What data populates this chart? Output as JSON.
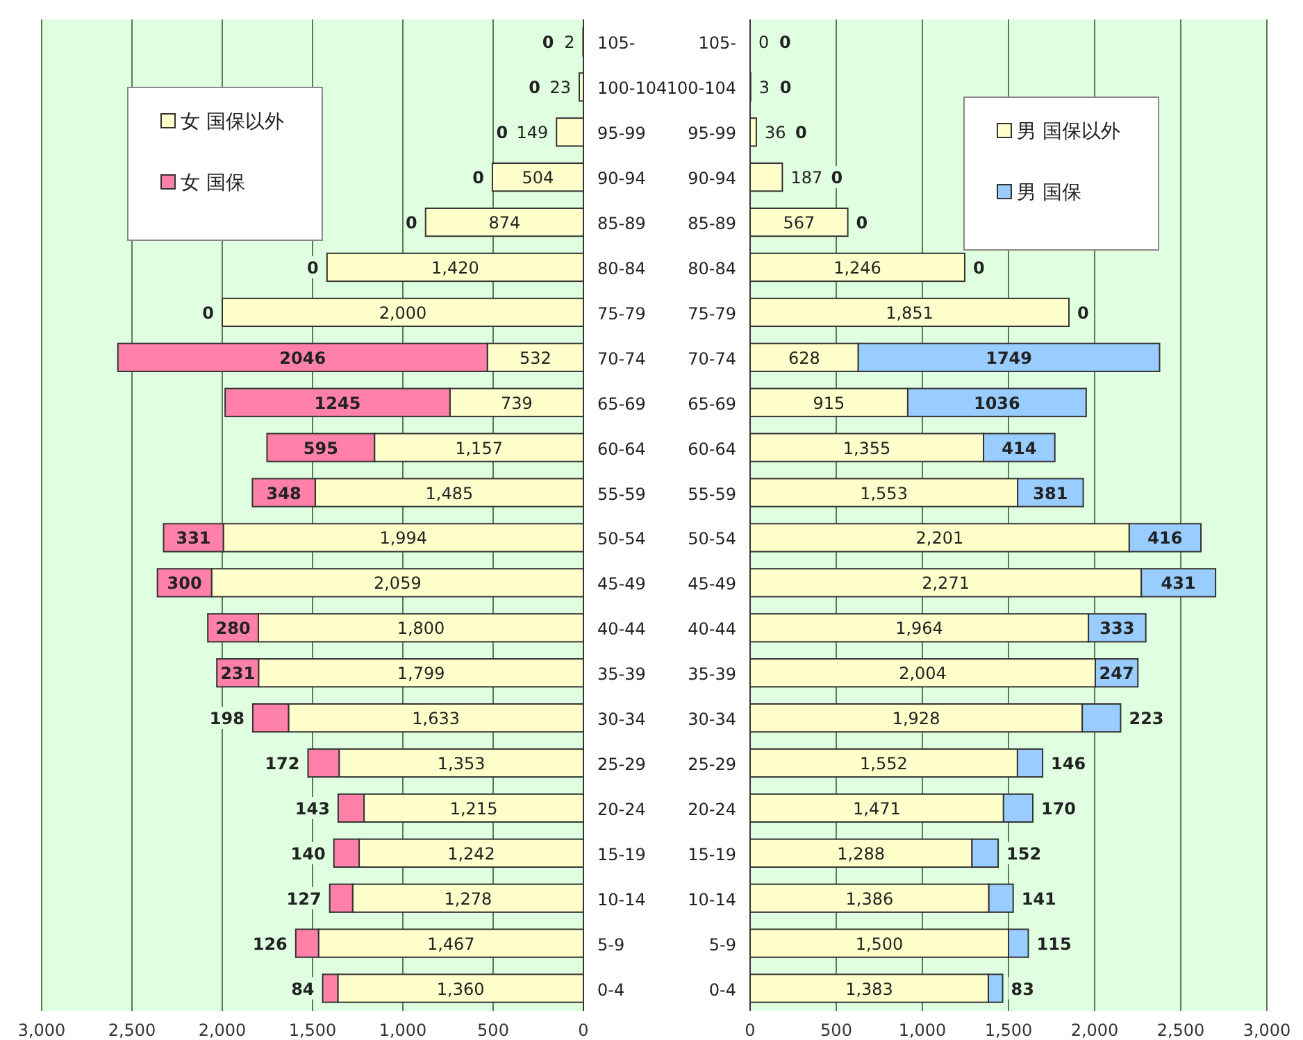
{
  "chart_data": [
    {
      "type": "bar",
      "orientation": "horizontal",
      "stacked": true,
      "grid": "x",
      "legend": "top left",
      "data_labels": false,
      "categories": [
        "105-",
        "100-104",
        "95-99",
        "90-94",
        "85-89",
        "80-84",
        "75-79",
        "70-74",
        "65-69",
        "60-64",
        "55-59",
        "50-54",
        "45-49",
        "40-44",
        "35-39",
        "30-34",
        "25-29",
        "20-24",
        "15-19",
        "10-14",
        "5-9",
        "0-4"
      ],
      "xlim": [
        3000,
        0
      ],
      "xticks": [
        {
          "value": 3000,
          "label": "3,000"
        },
        {
          "value": 2500,
          "label": "2,500"
        },
        {
          "value": 2000,
          "label": "2,000"
        },
        {
          "value": 1500,
          "label": "1,500"
        },
        {
          "value": 1000,
          "label": "1,000"
        },
        {
          "value": 500,
          "label": "500"
        },
        {
          "value": 0,
          "label": "0"
        }
      ],
      "series": [
        {
          "name": "女 国保以外",
          "color": "#ffffcc",
          "values": [
            2,
            23,
            149,
            504,
            874,
            1420,
            2000,
            532,
            739,
            1157,
            1485,
            1994,
            2059,
            1800,
            1799,
            1633,
            1353,
            1215,
            1242,
            1278,
            1467,
            1360
          ],
          "value_labels": [
            "2",
            "23",
            "149",
            "504",
            "874",
            "1,420",
            "2,000",
            "532",
            "739",
            "1,157",
            "1,485",
            "1,994",
            "2,059",
            "1,800",
            "1,799",
            "1,633",
            "1,353",
            "1,215",
            "1,242",
            "1,278",
            "1,467",
            "1,360"
          ]
        },
        {
          "name": "女 国保",
          "color": "#ff80a8",
          "values": [
            0,
            0,
            0,
            0,
            0,
            0,
            0,
            2046,
            1245,
            595,
            348,
            331,
            300,
            280,
            231,
            198,
            172,
            143,
            140,
            127,
            126,
            84
          ],
          "value_labels": [
            "0",
            "0",
            "0",
            "0",
            "0",
            "0",
            "0",
            "2046",
            "1245",
            "595",
            "348",
            "331",
            "300",
            "280",
            "231",
            "198",
            "172",
            "143",
            "140",
            "127",
            "126",
            "84"
          ]
        }
      ]
    },
    {
      "type": "bar",
      "orientation": "horizontal",
      "stacked": true,
      "grid": "x",
      "legend": "top right",
      "data_labels": false,
      "categories": [
        "105-",
        "100-104",
        "95-99",
        "90-94",
        "85-89",
        "80-84",
        "75-79",
        "70-74",
        "65-69",
        "60-64",
        "55-59",
        "50-54",
        "45-49",
        "40-44",
        "35-39",
        "30-34",
        "25-29",
        "20-24",
        "15-19",
        "10-14",
        "5-9",
        "0-4"
      ],
      "xlim": [
        0,
        3000
      ],
      "xticks": [
        {
          "value": 0,
          "label": "0"
        },
        {
          "value": 500,
          "label": "500"
        },
        {
          "value": 1000,
          "label": "1,000"
        },
        {
          "value": 1500,
          "label": "1,500"
        },
        {
          "value": 2000,
          "label": "2,000"
        },
        {
          "value": 2500,
          "label": "2,500"
        },
        {
          "value": 3000,
          "label": "3,000"
        }
      ],
      "series": [
        {
          "name": "男 国保以外",
          "color": "#ffffcc",
          "values": [
            0,
            3,
            36,
            187,
            567,
            1246,
            1851,
            628,
            915,
            1355,
            1553,
            2201,
            2271,
            1964,
            2004,
            1928,
            1552,
            1471,
            1288,
            1386,
            1500,
            1383
          ],
          "value_labels": [
            "0",
            "3",
            "36",
            "187",
            "567",
            "1,246",
            "1,851",
            "628",
            "915",
            "1,355",
            "1,553",
            "2,201",
            "2,271",
            "1,964",
            "2,004",
            "1,928",
            "1,552",
            "1,471",
            "1,288",
            "1,386",
            "1,500",
            "1,383"
          ]
        },
        {
          "name": "男 国保",
          "color": "#99ccff",
          "values": [
            0,
            0,
            0,
            0,
            0,
            0,
            0,
            1749,
            1036,
            414,
            381,
            416,
            431,
            333,
            247,
            223,
            146,
            170,
            152,
            141,
            115,
            83
          ],
          "value_labels": [
            "0",
            "0",
            "0",
            "0",
            "0",
            "0",
            "0",
            "1749",
            "1036",
            "414",
            "381",
            "416",
            "431",
            "333",
            "247",
            "223",
            "146",
            "170",
            "152",
            "141",
            "115",
            "83"
          ]
        }
      ]
    }
  ]
}
